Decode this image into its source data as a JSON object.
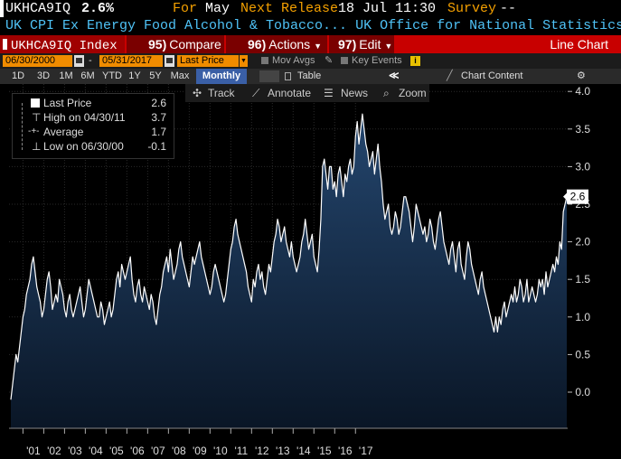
{
  "header": {
    "ticker": "UKHCA9IQ",
    "value": "2.6%",
    "for_label": "For",
    "for_value": "May",
    "release_label": "Next Release",
    "release_value": "18 Jul 11:30",
    "survey_label": "Survey",
    "survey_value": "--"
  },
  "description": "UK CPI Ex Energy Food Alcohol & Tobacco... UK Office for National Statistics",
  "function_bar": {
    "security": "UKHCA9IQ Index",
    "compare_key": "95)",
    "compare_label": "Compare",
    "actions_key": "96)",
    "actions_label": "Actions",
    "edit_key": "97)",
    "edit_label": "Edit",
    "chart_type": "Line Chart"
  },
  "date_bar": {
    "start_date": "06/30/2000",
    "dash": "-",
    "end_date": "05/31/2017",
    "field": "Last Price",
    "mov_avgs": "Mov Avgs",
    "key_events": "Key Events"
  },
  "period_bar": {
    "buttons": [
      "1D",
      "3D",
      "1M",
      "6M",
      "YTD",
      "1Y",
      "5Y",
      "Max"
    ],
    "frequency": "Monthly",
    "table": "Table",
    "chart_content": "Chart Content"
  },
  "toolbar": {
    "track": "Track",
    "annotate": "Annotate",
    "news": "News",
    "zoom": "Zoom"
  },
  "legend": {
    "items": [
      {
        "label": "Last Price",
        "value": "2.6"
      },
      {
        "label": "High on 04/30/11",
        "value": "3.7"
      },
      {
        "label": "Average",
        "value": "1.7"
      },
      {
        "label": "Low on 06/30/00",
        "value": "-0.1"
      }
    ]
  },
  "colors": {
    "line": "#ffffff",
    "fill_top": "#24466e",
    "fill_bottom": "#0a1626",
    "accent_orange": "#f08c00",
    "header_red": "#c80000",
    "desc_blue": "#4fc3f7",
    "frequency_blue": "#3a5fa6"
  },
  "chart_data": {
    "type": "area",
    "title": "",
    "xlabel": "",
    "ylabel": "",
    "frequency": "Monthly",
    "start": "06/30/2000",
    "end": "05/31/2017",
    "ylim": [
      -0.5,
      4.0
    ],
    "y_ticks": [
      "4.0",
      "3.5",
      "3.0",
      "2.5",
      "2.0",
      "1.5",
      "1.0",
      "0.5",
      "0.0"
    ],
    "x_ticks": [
      "'01",
      "'02",
      "'03",
      "'04",
      "'05",
      "'06",
      "'07",
      "'08",
      "'09",
      "'10",
      "'11",
      "'12",
      "'13",
      "'14",
      "'15",
      "'16",
      "'17"
    ],
    "last_value_label": "2.6",
    "grid": true,
    "values": [
      -0.1,
      0.1,
      0.3,
      0.5,
      0.4,
      0.6,
      0.8,
      1.0,
      1.1,
      1.3,
      1.4,
      1.5,
      1.7,
      1.8,
      1.6,
      1.4,
      1.3,
      1.2,
      1.0,
      1.1,
      1.3,
      1.5,
      1.6,
      1.4,
      1.1,
      1.2,
      1.3,
      1.2,
      1.5,
      1.4,
      1.3,
      1.1,
      1.0,
      1.2,
      1.3,
      1.1,
      1.0,
      1.1,
      1.2,
      1.3,
      1.4,
      1.2,
      1.0,
      1.1,
      1.3,
      1.5,
      1.4,
      1.3,
      1.2,
      1.1,
      1.0,
      1.0,
      1.2,
      1.1,
      0.9,
      1.0,
      1.1,
      1.2,
      1.0,
      1.1,
      1.3,
      1.5,
      1.6,
      1.4,
      1.7,
      1.6,
      1.5,
      1.6,
      1.7,
      1.8,
      1.5,
      1.3,
      1.2,
      1.4,
      1.5,
      1.3,
      1.2,
      1.4,
      1.3,
      1.2,
      1.1,
      1.3,
      1.2,
      1.0,
      0.9,
      1.1,
      1.3,
      1.4,
      1.6,
      1.7,
      1.8,
      1.6,
      1.9,
      1.7,
      1.5,
      1.6,
      1.7,
      1.9,
      2.0,
      1.8,
      1.7,
      1.6,
      1.5,
      1.4,
      1.6,
      1.8,
      1.7,
      1.8,
      1.9,
      2.0,
      1.8,
      1.7,
      1.6,
      1.5,
      1.4,
      1.3,
      1.4,
      1.6,
      1.7,
      1.6,
      1.5,
      1.4,
      1.3,
      1.2,
      1.3,
      1.5,
      1.7,
      1.9,
      2.0,
      2.2,
      2.3,
      2.1,
      2.0,
      1.9,
      1.8,
      1.7,
      1.6,
      1.4,
      1.3,
      1.2,
      1.5,
      1.4,
      1.6,
      1.7,
      1.5,
      1.6,
      1.4,
      1.3,
      1.5,
      1.7,
      1.6,
      1.8,
      2.0,
      2.1,
      2.3,
      2.2,
      2.0,
      2.1,
      2.2,
      2.0,
      1.9,
      1.8,
      2.0,
      1.8,
      1.7,
      1.6,
      1.7,
      1.8,
      2.0,
      2.1,
      2.3,
      2.1,
      1.9,
      2.0,
      2.1,
      1.8,
      1.7,
      1.6,
      1.9,
      2.3,
      3.0,
      3.1,
      2.9,
      2.7,
      3.0,
      3.0,
      2.7,
      2.8,
      2.6,
      2.9,
      3.0,
      2.8,
      2.6,
      2.9,
      2.8,
      3.0,
      3.1,
      2.9,
      3.0,
      3.4,
      3.6,
      3.3,
      3.5,
      3.7,
      3.5,
      3.3,
      3.2,
      3.0,
      3.1,
      3.2,
      2.9,
      3.1,
      3.3,
      3.0,
      2.8,
      2.5,
      2.3,
      2.4,
      2.5,
      2.2,
      2.1,
      2.2,
      2.4,
      2.3,
      2.1,
      2.2,
      2.4,
      2.6,
      2.6,
      2.5,
      2.4,
      2.2,
      2.0,
      2.2,
      2.5,
      2.4,
      2.3,
      2.2,
      2.1,
      2.2,
      2.0,
      2.1,
      2.3,
      2.2,
      2.0,
      1.9,
      2.1,
      2.3,
      2.4,
      2.2,
      2.0,
      1.9,
      1.8,
      1.7,
      1.9,
      2.0,
      1.8,
      1.6,
      1.9,
      2.0,
      1.7,
      1.6,
      1.5,
      1.8,
      2.0,
      1.9,
      1.7,
      1.6,
      1.5,
      1.4,
      1.3,
      1.5,
      1.6,
      1.4,
      1.3,
      1.2,
      1.1,
      1.0,
      0.9,
      0.8,
      1.0,
      0.8,
      1.0,
      0.9,
      1.1,
      1.2,
      1.0,
      1.1,
      1.2,
      1.3,
      1.2,
      1.4,
      1.2,
      1.3,
      1.5,
      1.4,
      1.2,
      1.3,
      1.5,
      1.2,
      1.3,
      1.4,
      1.3,
      1.2,
      1.3,
      1.5,
      1.4,
      1.5,
      1.3,
      1.6,
      1.4,
      1.5,
      1.6,
      1.7,
      1.6,
      1.8,
      1.7,
      2.0,
      1.9,
      2.4,
      2.5,
      2.6
    ]
  }
}
